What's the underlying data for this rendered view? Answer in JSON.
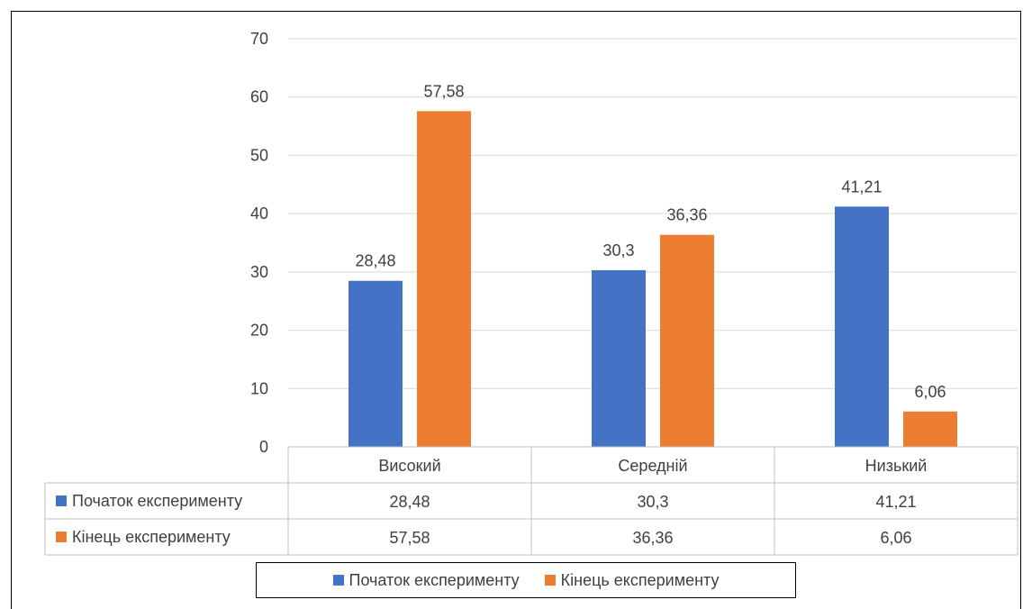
{
  "chart_data": {
    "type": "bar",
    "categories": [
      "Високий",
      "Середній",
      "Низький"
    ],
    "series": [
      {
        "name": "Початок експерименту",
        "values": [
          28.48,
          30.3,
          41.21
        ],
        "labels": [
          "28,48",
          "30,3",
          "41,21"
        ],
        "color": "#4472C4"
      },
      {
        "name": "Кінець експерименту",
        "values": [
          57.58,
          36.36,
          6.06
        ],
        "labels": [
          "57,58",
          "36,36",
          "6,06"
        ],
        "color": "#ED7D31"
      }
    ],
    "ylim": [
      0,
      70
    ],
    "yticks": [
      0,
      10,
      20,
      30,
      40,
      50,
      60,
      70
    ],
    "grid": true,
    "data_table": true,
    "legend": "bottom",
    "title": "",
    "xlabel": "",
    "ylabel": ""
  }
}
